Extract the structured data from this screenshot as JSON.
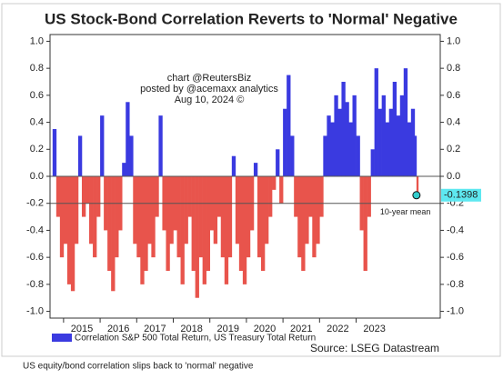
{
  "chart_data": {
    "type": "bar",
    "title": "US Stock-Bond Correlation Reverts to 'Normal' Negative",
    "watermark": [
      "chart @ReutersBiz",
      "posted by @acemaxx analytics",
      "Aug 10, 2024 ©"
    ],
    "series": [
      {
        "name": "Correlation S&P 500 Total Return, US Treasury Total Return",
        "positive_color": "#3a3ae0",
        "negative_color": "#e8544c",
        "values": [
          0.35,
          -0.3,
          -0.6,
          -0.5,
          -0.8,
          -0.85,
          -0.5,
          0.3,
          -0.3,
          -0.2,
          -0.5,
          -0.6,
          -0.3,
          0.45,
          -0.4,
          -0.7,
          -0.85,
          -0.6,
          -0.4,
          0.1,
          0.55,
          0.3,
          -0.5,
          -0.6,
          -0.8,
          -0.7,
          -0.5,
          -0.6,
          -0.3,
          0.45,
          -0.4,
          -0.7,
          -0.5,
          -0.4,
          -0.6,
          -0.8,
          -0.5,
          -0.3,
          -0.7,
          -0.9,
          -0.6,
          -0.8,
          -0.7,
          -0.4,
          -0.5,
          -0.3,
          -0.6,
          -0.8,
          -0.6,
          0.15,
          -0.5,
          -0.7,
          -0.8,
          -0.6,
          -0.4,
          0.1,
          -0.6,
          -0.7,
          -0.5,
          -0.3,
          -0.1,
          0.2,
          -0.2,
          0.5,
          0.75,
          0.3,
          -0.3,
          -0.6,
          -0.7,
          -0.5,
          -0.3,
          -0.6,
          -0.5,
          -0.3,
          0.3,
          0.45,
          0.4,
          0.6,
          0.5,
          0.7,
          0.55,
          0.4,
          0.6,
          0.3,
          -0.4,
          -0.7,
          -0.3,
          0.2,
          0.8,
          0.5,
          0.6,
          0.4,
          0.5,
          0.7,
          0.45,
          0.6,
          0.8,
          0.4,
          0.5,
          0.3,
          -0.1398
        ]
      }
    ],
    "x": [
      2014.7,
      2014.8,
      2014.9,
      2015.0,
      2015.1,
      2015.2,
      2015.3,
      2015.4,
      2015.5,
      2015.6,
      2015.7,
      2015.8,
      2015.9,
      2016.0,
      2016.1,
      2016.2,
      2016.3,
      2016.4,
      2016.5,
      2016.6,
      2016.7,
      2016.8,
      2016.9,
      2017.0,
      2017.1,
      2017.2,
      2017.3,
      2017.4,
      2017.5,
      2017.6,
      2017.7,
      2017.8,
      2017.9,
      2018.0,
      2018.1,
      2018.2,
      2018.3,
      2018.4,
      2018.5,
      2018.6,
      2018.7,
      2018.8,
      2018.9,
      2019.0,
      2019.1,
      2019.2,
      2019.3,
      2019.4,
      2019.5,
      2019.6,
      2019.7,
      2019.8,
      2019.9,
      2020.0,
      2020.1,
      2020.2,
      2020.3,
      2020.4,
      2020.5,
      2020.6,
      2020.7,
      2020.8,
      2020.9,
      2021.0,
      2021.1,
      2021.2,
      2021.3,
      2021.4,
      2021.5,
      2021.6,
      2021.7,
      2021.8,
      2021.9,
      2022.0,
      2022.1,
      2022.2,
      2022.3,
      2022.4,
      2022.5,
      2022.6,
      2022.7,
      2022.8,
      2022.9,
      2023.0,
      2023.1,
      2023.2,
      2023.3,
      2023.4,
      2023.5,
      2023.6,
      2023.7,
      2023.8,
      2023.9,
      2024.0,
      2024.1,
      2024.2,
      2024.3,
      2024.4,
      2024.5,
      2024.6,
      2024.65
    ],
    "last_label": "-0.1398",
    "mean": -0.2,
    "mean_label": "10-year mean",
    "xlim": [
      2014.63,
      2025.3
    ],
    "xticks": [
      2015,
      2016,
      2017,
      2018,
      2019,
      2020,
      2021,
      2022,
      2023
    ],
    "ylim": [
      -1.05,
      1.05
    ],
    "yticks": [
      {
        "value": 1,
        "label": "1.0"
      },
      {
        "value": 0.8,
        "label": "0.8"
      },
      {
        "value": 0.6,
        "label": "0.6"
      },
      {
        "value": 0.4,
        "label": "0.4"
      },
      {
        "value": 0.2,
        "label": "0.2"
      },
      {
        "value": 0,
        "label": "0.0"
      },
      {
        "value": -0.2,
        "label": "-0.2"
      },
      {
        "value": -0.4,
        "label": "-0.4"
      },
      {
        "value": -0.6,
        "label": "-0.6"
      },
      {
        "value": -0.8,
        "label": "-0.8"
      },
      {
        "value": -1,
        "label": "-1.0"
      }
    ],
    "source": "Source: LSEG Datastream",
    "caption": "US equity/bond correlation slips back to 'normal' negative"
  }
}
